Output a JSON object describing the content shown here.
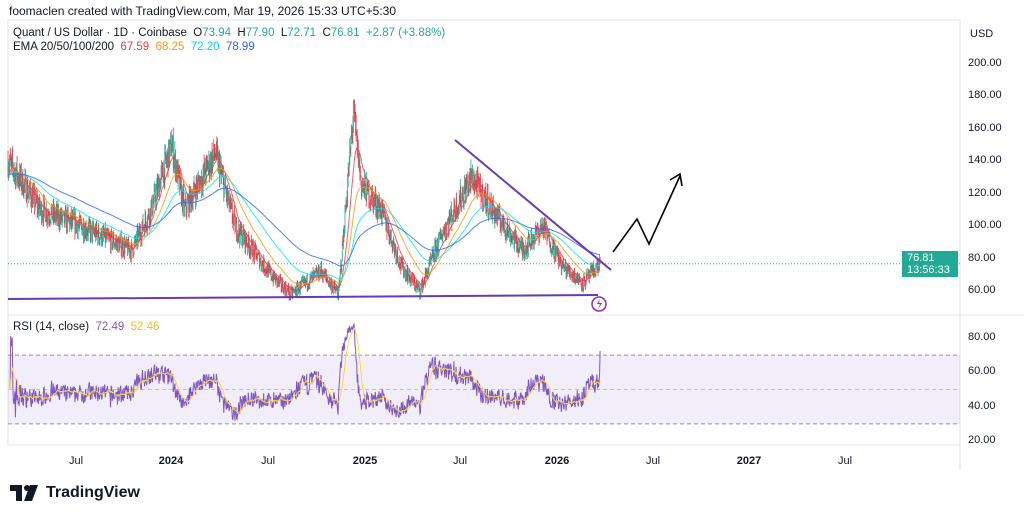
{
  "header": {
    "credit": "foomaclen created with TradingView.com, Mar 19, 2026 15:33 UTC+5:30"
  },
  "legend": {
    "symbol": "Quant / US Dollar · 1D · Coinbase",
    "o_label": "O",
    "o": "73.94",
    "h_label": "H",
    "h": "77.90",
    "l_label": "L",
    "l": "72.71",
    "c_label": "C",
    "c": "76.81",
    "change": "+2.87 (+3.88%)",
    "ema_label": "EMA 20/50/100/200",
    "ema20": "67.59",
    "ema50": "68.25",
    "ema100": "72.20",
    "ema200": "78.99"
  },
  "rsi_legend": {
    "label": "RSI (14, close)",
    "rsi": "72.49",
    "ma": "52.46"
  },
  "price_scale": {
    "currency": "USD",
    "labels": [
      "200.00",
      "180.00",
      "160.00",
      "140.00",
      "120.00",
      "100.00",
      "80.00",
      "60.00"
    ]
  },
  "rsi_scale": {
    "labels": [
      "80.00",
      "60.00",
      "40.00",
      "20.00"
    ]
  },
  "last_price": {
    "price": "76.81",
    "countdown": "13:56:33"
  },
  "time_axis": [
    {
      "t": "Jul",
      "bold": false
    },
    {
      "t": "2024",
      "bold": true
    },
    {
      "t": "Jul",
      "bold": false
    },
    {
      "t": "2025",
      "bold": true
    },
    {
      "t": "Jul",
      "bold": false
    },
    {
      "t": "2026",
      "bold": true
    },
    {
      "t": "Jul",
      "bold": false
    },
    {
      "t": "2027",
      "bold": true
    },
    {
      "t": "Jul",
      "bold": false
    }
  ],
  "logo": {
    "text": "TradingView"
  },
  "colors": {
    "up": "#22ab94",
    "down": "#f23645",
    "ema20": "#f23645",
    "ema50": "#ff9800",
    "ema100": "#00e5ff",
    "ema200": "#2962ff",
    "rsi": "#7e57c2",
    "rsi_ma": "#fdd835",
    "drawing": "#673ab7"
  },
  "chart_data": {
    "type": "candlestick",
    "approx_price_path": [
      [
        "2023-03-01",
        140
      ],
      [
        "2023-05-01",
        110
      ],
      [
        "2023-07-15",
        100
      ],
      [
        "2023-10-20",
        85
      ],
      [
        "2023-11-25",
        110
      ],
      [
        "2024-01-03",
        150
      ],
      [
        "2024-01-27",
        110
      ],
      [
        "2024-03-25",
        145
      ],
      [
        "2024-05-01",
        100
      ],
      [
        "2024-07-07",
        70
      ],
      [
        "2024-08-14",
        58
      ],
      [
        "2024-10-10",
        72
      ],
      [
        "2024-11-12",
        58
      ],
      [
        "2024-12-10",
        170
      ],
      [
        "2024-12-25",
        125
      ],
      [
        "2025-01-31",
        110
      ],
      [
        "2025-03-10",
        75
      ],
      [
        "2025-04-14",
        60
      ],
      [
        "2025-05-25",
        95
      ],
      [
        "2025-07-20",
        130
      ],
      [
        "2025-08-28",
        110
      ],
      [
        "2025-10-24",
        85
      ],
      [
        "2025-12-01",
        100
      ],
      [
        "2026-01-07",
        75
      ],
      [
        "2026-02-15",
        65
      ],
      [
        "2026-03-19",
        76.81
      ]
    ],
    "ylim": [
      50,
      215
    ],
    "rsi_ylim": [
      15,
      90
    ],
    "rsi_bands": [
      30,
      50,
      70
    ]
  }
}
